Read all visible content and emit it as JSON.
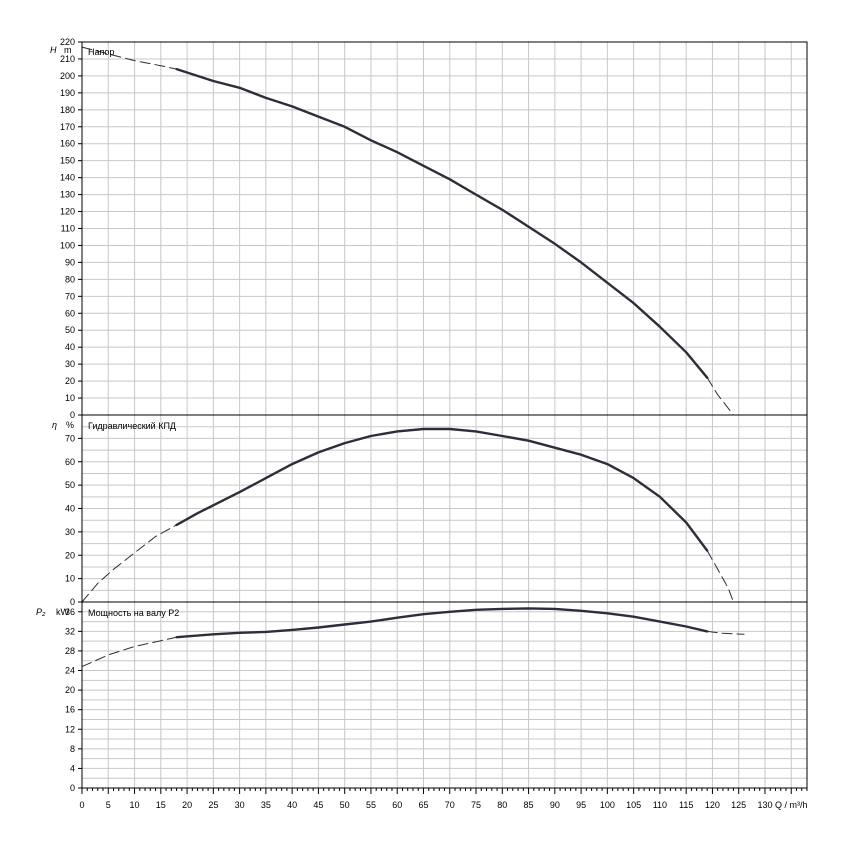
{
  "chart_data": [
    {
      "type": "line",
      "panel": "head",
      "title": "Напор",
      "ylabel_symbol": "H",
      "ylabel_unit": "m",
      "ylim": [
        0,
        220
      ],
      "yticks": [
        0,
        10,
        20,
        30,
        40,
        50,
        60,
        70,
        80,
        90,
        100,
        110,
        120,
        130,
        140,
        150,
        160,
        170,
        180,
        190,
        200,
        210,
        220
      ],
      "series": [
        {
          "style": "dashed",
          "points": [
            [
              0,
              217
            ],
            [
              5,
              213
            ],
            [
              10,
              209
            ],
            [
              15,
              206
            ],
            [
              18,
              204
            ]
          ]
        },
        {
          "style": "solid",
          "points": [
            [
              18,
              204
            ],
            [
              25,
              197
            ],
            [
              30,
              193
            ],
            [
              35,
              187
            ],
            [
              40,
              182
            ],
            [
              45,
              176
            ],
            [
              50,
              170
            ],
            [
              55,
              162
            ],
            [
              60,
              155
            ],
            [
              65,
              147
            ],
            [
              70,
              139
            ],
            [
              75,
              130
            ],
            [
              80,
              121
            ],
            [
              85,
              111
            ],
            [
              90,
              101
            ],
            [
              95,
              90
            ],
            [
              100,
              78
            ],
            [
              105,
              66
            ],
            [
              110,
              52
            ],
            [
              115,
              37
            ],
            [
              119,
              22
            ]
          ]
        },
        {
          "style": "dashed",
          "points": [
            [
              119,
              22
            ],
            [
              121,
              12
            ],
            [
              123,
              4
            ],
            [
              124,
              0
            ]
          ]
        }
      ]
    },
    {
      "type": "line",
      "panel": "efficiency",
      "title": "Гидравлический КПД",
      "ylabel_symbol": "η",
      "ylabel_unit": "%",
      "ylim": [
        0,
        80
      ],
      "yticks": [
        0,
        10,
        20,
        30,
        40,
        50,
        60,
        70
      ],
      "series": [
        {
          "style": "dashed",
          "points": [
            [
              0,
              0
            ],
            [
              3,
              8
            ],
            [
              6,
              14
            ],
            [
              10,
              21
            ],
            [
              14,
              28
            ],
            [
              18,
              33
            ]
          ]
        },
        {
          "style": "solid",
          "points": [
            [
              18,
              33
            ],
            [
              22,
              38
            ],
            [
              30,
              47
            ],
            [
              35,
              53
            ],
            [
              40,
              59
            ],
            [
              45,
              64
            ],
            [
              50,
              68
            ],
            [
              55,
              71
            ],
            [
              60,
              73
            ],
            [
              65,
              74
            ],
            [
              70,
              74
            ],
            [
              75,
              73
            ],
            [
              80,
              71
            ],
            [
              85,
              69
            ],
            [
              90,
              66
            ],
            [
              95,
              63
            ],
            [
              100,
              59
            ],
            [
              105,
              53
            ],
            [
              110,
              45
            ],
            [
              115,
              34
            ],
            [
              119,
              22
            ]
          ]
        },
        {
          "style": "dashed",
          "points": [
            [
              119,
              22
            ],
            [
              121,
              14
            ],
            [
              123,
              6
            ],
            [
              124,
              0
            ]
          ]
        }
      ]
    },
    {
      "type": "line",
      "panel": "power",
      "title": "Мощность на валу P2",
      "ylabel_symbol": "P₂",
      "ylabel_unit": "kW",
      "ylim": [
        0,
        38
      ],
      "yticks": [
        0,
        4,
        8,
        12,
        16,
        20,
        24,
        28,
        32,
        36
      ],
      "series": [
        {
          "style": "dashed",
          "points": [
            [
              0,
              24.8
            ],
            [
              5,
              27.2
            ],
            [
              10,
              28.9
            ],
            [
              15,
              30.1
            ],
            [
              18,
              30.8
            ]
          ]
        },
        {
          "style": "solid",
          "points": [
            [
              18,
              30.8
            ],
            [
              25,
              31.4
            ],
            [
              30,
              31.7
            ],
            [
              35,
              31.9
            ],
            [
              40,
              32.3
            ],
            [
              45,
              32.8
            ],
            [
              50,
              33.4
            ],
            [
              55,
              34.0
            ],
            [
              60,
              34.8
            ],
            [
              65,
              35.5
            ],
            [
              70,
              36.0
            ],
            [
              75,
              36.4
            ],
            [
              80,
              36.6
            ],
            [
              85,
              36.7
            ],
            [
              90,
              36.6
            ],
            [
              95,
              36.2
            ],
            [
              100,
              35.7
            ],
            [
              105,
              35.0
            ],
            [
              110,
              34.0
            ],
            [
              115,
              33.0
            ],
            [
              119,
              32.0
            ]
          ]
        },
        {
          "style": "dashed",
          "points": [
            [
              119,
              32.0
            ],
            [
              122,
              31.6
            ],
            [
              126,
              31.4
            ]
          ]
        }
      ]
    }
  ],
  "x_axis": {
    "label": "Q / m³/h",
    "xlim": [
      0,
      138
    ],
    "xticks": [
      0,
      5,
      10,
      15,
      20,
      25,
      30,
      35,
      40,
      45,
      50,
      55,
      60,
      65,
      70,
      75,
      80,
      85,
      90,
      95,
      100,
      105,
      110,
      115,
      120,
      125,
      130
    ]
  },
  "colors": {
    "grid": "#c8c8c8",
    "curve": "#2b2f3a",
    "axis": "#000000"
  }
}
